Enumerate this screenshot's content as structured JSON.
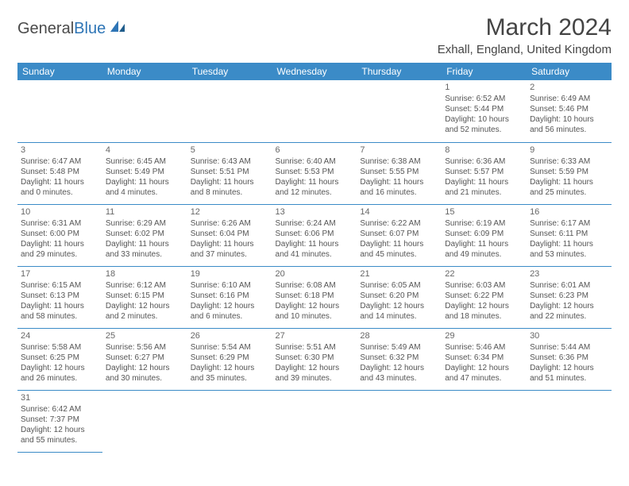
{
  "logo": {
    "text1": "General",
    "text2": "Blue"
  },
  "title": "March 2024",
  "location": "Exhall, England, United Kingdom",
  "colors": {
    "header_bg": "#3b8bc7",
    "header_text": "#ffffff",
    "border": "#3b8bc7",
    "text": "#555555",
    "title_color": "#444444"
  },
  "daynames": [
    "Sunday",
    "Monday",
    "Tuesday",
    "Wednesday",
    "Thursday",
    "Friday",
    "Saturday"
  ],
  "weeks": [
    [
      null,
      null,
      null,
      null,
      null,
      {
        "n": "1",
        "sr": "Sunrise: 6:52 AM",
        "ss": "Sunset: 5:44 PM",
        "dl1": "Daylight: 10 hours",
        "dl2": "and 52 minutes."
      },
      {
        "n": "2",
        "sr": "Sunrise: 6:49 AM",
        "ss": "Sunset: 5:46 PM",
        "dl1": "Daylight: 10 hours",
        "dl2": "and 56 minutes."
      }
    ],
    [
      {
        "n": "3",
        "sr": "Sunrise: 6:47 AM",
        "ss": "Sunset: 5:48 PM",
        "dl1": "Daylight: 11 hours",
        "dl2": "and 0 minutes."
      },
      {
        "n": "4",
        "sr": "Sunrise: 6:45 AM",
        "ss": "Sunset: 5:49 PM",
        "dl1": "Daylight: 11 hours",
        "dl2": "and 4 minutes."
      },
      {
        "n": "5",
        "sr": "Sunrise: 6:43 AM",
        "ss": "Sunset: 5:51 PM",
        "dl1": "Daylight: 11 hours",
        "dl2": "and 8 minutes."
      },
      {
        "n": "6",
        "sr": "Sunrise: 6:40 AM",
        "ss": "Sunset: 5:53 PM",
        "dl1": "Daylight: 11 hours",
        "dl2": "and 12 minutes."
      },
      {
        "n": "7",
        "sr": "Sunrise: 6:38 AM",
        "ss": "Sunset: 5:55 PM",
        "dl1": "Daylight: 11 hours",
        "dl2": "and 16 minutes."
      },
      {
        "n": "8",
        "sr": "Sunrise: 6:36 AM",
        "ss": "Sunset: 5:57 PM",
        "dl1": "Daylight: 11 hours",
        "dl2": "and 21 minutes."
      },
      {
        "n": "9",
        "sr": "Sunrise: 6:33 AM",
        "ss": "Sunset: 5:59 PM",
        "dl1": "Daylight: 11 hours",
        "dl2": "and 25 minutes."
      }
    ],
    [
      {
        "n": "10",
        "sr": "Sunrise: 6:31 AM",
        "ss": "Sunset: 6:00 PM",
        "dl1": "Daylight: 11 hours",
        "dl2": "and 29 minutes."
      },
      {
        "n": "11",
        "sr": "Sunrise: 6:29 AM",
        "ss": "Sunset: 6:02 PM",
        "dl1": "Daylight: 11 hours",
        "dl2": "and 33 minutes."
      },
      {
        "n": "12",
        "sr": "Sunrise: 6:26 AM",
        "ss": "Sunset: 6:04 PM",
        "dl1": "Daylight: 11 hours",
        "dl2": "and 37 minutes."
      },
      {
        "n": "13",
        "sr": "Sunrise: 6:24 AM",
        "ss": "Sunset: 6:06 PM",
        "dl1": "Daylight: 11 hours",
        "dl2": "and 41 minutes."
      },
      {
        "n": "14",
        "sr": "Sunrise: 6:22 AM",
        "ss": "Sunset: 6:07 PM",
        "dl1": "Daylight: 11 hours",
        "dl2": "and 45 minutes."
      },
      {
        "n": "15",
        "sr": "Sunrise: 6:19 AM",
        "ss": "Sunset: 6:09 PM",
        "dl1": "Daylight: 11 hours",
        "dl2": "and 49 minutes."
      },
      {
        "n": "16",
        "sr": "Sunrise: 6:17 AM",
        "ss": "Sunset: 6:11 PM",
        "dl1": "Daylight: 11 hours",
        "dl2": "and 53 minutes."
      }
    ],
    [
      {
        "n": "17",
        "sr": "Sunrise: 6:15 AM",
        "ss": "Sunset: 6:13 PM",
        "dl1": "Daylight: 11 hours",
        "dl2": "and 58 minutes."
      },
      {
        "n": "18",
        "sr": "Sunrise: 6:12 AM",
        "ss": "Sunset: 6:15 PM",
        "dl1": "Daylight: 12 hours",
        "dl2": "and 2 minutes."
      },
      {
        "n": "19",
        "sr": "Sunrise: 6:10 AM",
        "ss": "Sunset: 6:16 PM",
        "dl1": "Daylight: 12 hours",
        "dl2": "and 6 minutes."
      },
      {
        "n": "20",
        "sr": "Sunrise: 6:08 AM",
        "ss": "Sunset: 6:18 PM",
        "dl1": "Daylight: 12 hours",
        "dl2": "and 10 minutes."
      },
      {
        "n": "21",
        "sr": "Sunrise: 6:05 AM",
        "ss": "Sunset: 6:20 PM",
        "dl1": "Daylight: 12 hours",
        "dl2": "and 14 minutes."
      },
      {
        "n": "22",
        "sr": "Sunrise: 6:03 AM",
        "ss": "Sunset: 6:22 PM",
        "dl1": "Daylight: 12 hours",
        "dl2": "and 18 minutes."
      },
      {
        "n": "23",
        "sr": "Sunrise: 6:01 AM",
        "ss": "Sunset: 6:23 PM",
        "dl1": "Daylight: 12 hours",
        "dl2": "and 22 minutes."
      }
    ],
    [
      {
        "n": "24",
        "sr": "Sunrise: 5:58 AM",
        "ss": "Sunset: 6:25 PM",
        "dl1": "Daylight: 12 hours",
        "dl2": "and 26 minutes."
      },
      {
        "n": "25",
        "sr": "Sunrise: 5:56 AM",
        "ss": "Sunset: 6:27 PM",
        "dl1": "Daylight: 12 hours",
        "dl2": "and 30 minutes."
      },
      {
        "n": "26",
        "sr": "Sunrise: 5:54 AM",
        "ss": "Sunset: 6:29 PM",
        "dl1": "Daylight: 12 hours",
        "dl2": "and 35 minutes."
      },
      {
        "n": "27",
        "sr": "Sunrise: 5:51 AM",
        "ss": "Sunset: 6:30 PM",
        "dl1": "Daylight: 12 hours",
        "dl2": "and 39 minutes."
      },
      {
        "n": "28",
        "sr": "Sunrise: 5:49 AM",
        "ss": "Sunset: 6:32 PM",
        "dl1": "Daylight: 12 hours",
        "dl2": "and 43 minutes."
      },
      {
        "n": "29",
        "sr": "Sunrise: 5:46 AM",
        "ss": "Sunset: 6:34 PM",
        "dl1": "Daylight: 12 hours",
        "dl2": "and 47 minutes."
      },
      {
        "n": "30",
        "sr": "Sunrise: 5:44 AM",
        "ss": "Sunset: 6:36 PM",
        "dl1": "Daylight: 12 hours",
        "dl2": "and 51 minutes."
      }
    ],
    [
      {
        "n": "31",
        "sr": "Sunrise: 6:42 AM",
        "ss": "Sunset: 7:37 PM",
        "dl1": "Daylight: 12 hours",
        "dl2": "and 55 minutes."
      },
      null,
      null,
      null,
      null,
      null,
      null
    ]
  ]
}
